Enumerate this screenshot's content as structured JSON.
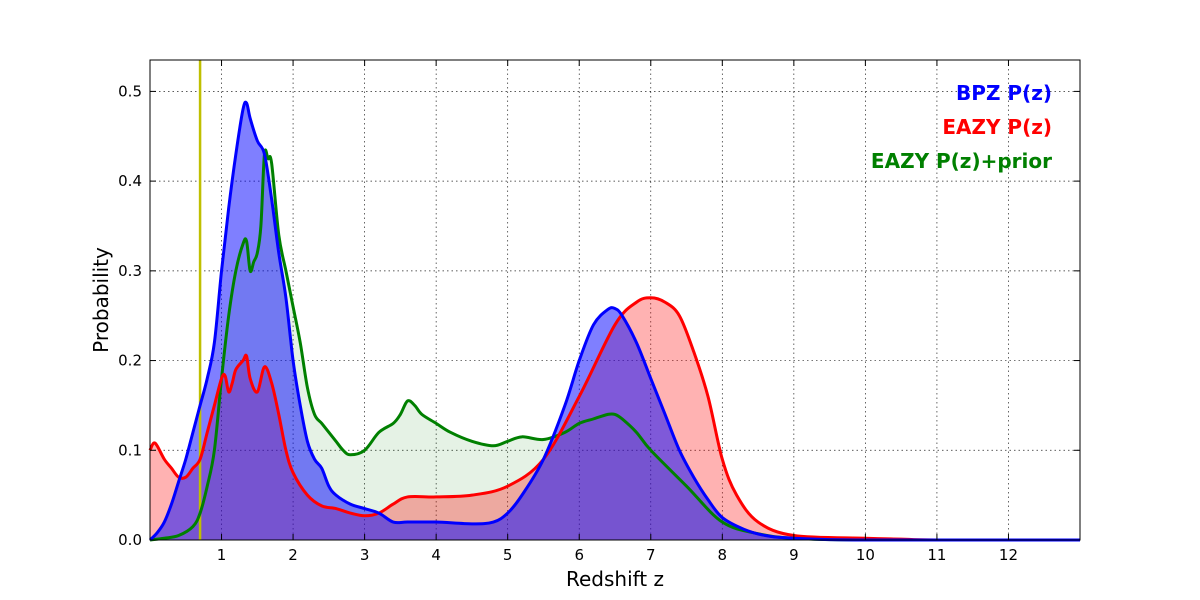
{
  "chart_data": {
    "type": "area",
    "title": "",
    "xlabel": "Redshift z",
    "ylabel": "Probability",
    "xlim": [
      0,
      13
    ],
    "ylim": [
      0,
      0.535
    ],
    "xticks": [
      1,
      2,
      3,
      4,
      5,
      6,
      7,
      8,
      9,
      10,
      11,
      12
    ],
    "xtick_labels": [
      "1",
      "2",
      "3",
      "4",
      "5",
      "6",
      "7",
      "8",
      "9",
      "10",
      "11",
      "12"
    ],
    "yticks": [
      0.0,
      0.1,
      0.2,
      0.3,
      0.4,
      0.5
    ],
    "ytick_labels": [
      "0.0",
      "0.1",
      "0.2",
      "0.3",
      "0.4",
      "0.5"
    ],
    "grid": true,
    "legend_placement": "top-right",
    "reference_line": {
      "x": 0.7,
      "color": "#bfbf00"
    },
    "series": [
      {
        "name": "BPZ P(z)",
        "color": "#0000ff",
        "fill": "#0000ff",
        "fill_opacity": 0.5,
        "x": [
          0,
          0.1,
          0.2,
          0.3,
          0.4,
          0.5,
          0.6,
          0.7,
          0.8,
          0.9,
          1.0,
          1.1,
          1.2,
          1.3,
          1.35,
          1.4,
          1.5,
          1.6,
          1.7,
          1.8,
          1.9,
          2.0,
          2.1,
          2.2,
          2.3,
          2.4,
          2.5,
          2.6,
          2.8,
          3.0,
          3.2,
          3.4,
          3.6,
          4.0,
          4.5,
          4.8,
          5.0,
          5.2,
          5.5,
          5.8,
          6.0,
          6.2,
          6.4,
          6.5,
          6.6,
          6.8,
          7.0,
          7.2,
          7.4,
          7.6,
          7.8,
          8.0,
          8.3,
          8.6,
          9.0,
          10.0,
          13.0
        ],
        "y": [
          0.0,
          0.008,
          0.02,
          0.04,
          0.065,
          0.09,
          0.12,
          0.15,
          0.18,
          0.22,
          0.3,
          0.37,
          0.43,
          0.48,
          0.487,
          0.47,
          0.445,
          0.43,
          0.38,
          0.32,
          0.27,
          0.2,
          0.15,
          0.11,
          0.09,
          0.08,
          0.06,
          0.05,
          0.04,
          0.035,
          0.03,
          0.02,
          0.02,
          0.02,
          0.018,
          0.02,
          0.03,
          0.05,
          0.09,
          0.15,
          0.2,
          0.24,
          0.257,
          0.258,
          0.25,
          0.22,
          0.18,
          0.14,
          0.1,
          0.07,
          0.045,
          0.025,
          0.012,
          0.005,
          0.002,
          0.0,
          0.0
        ]
      },
      {
        "name": "EAZY P(z)",
        "color": "#ff0000",
        "fill": "#ff0000",
        "fill_opacity": 0.3,
        "x": [
          0,
          0.05,
          0.1,
          0.2,
          0.3,
          0.4,
          0.5,
          0.6,
          0.7,
          0.8,
          0.9,
          1.0,
          1.05,
          1.1,
          1.15,
          1.2,
          1.3,
          1.35,
          1.4,
          1.5,
          1.6,
          1.7,
          1.8,
          1.9,
          2.0,
          2.2,
          2.4,
          2.6,
          2.8,
          3.0,
          3.2,
          3.4,
          3.6,
          4.0,
          4.5,
          5.0,
          5.5,
          6.0,
          6.5,
          6.8,
          7.0,
          7.2,
          7.4,
          7.6,
          7.8,
          8.0,
          8.2,
          8.5,
          9.0,
          10.0,
          10.5,
          11.0,
          13.0
        ],
        "y": [
          0.1,
          0.108,
          0.105,
          0.09,
          0.08,
          0.07,
          0.07,
          0.08,
          0.09,
          0.12,
          0.15,
          0.18,
          0.183,
          0.165,
          0.175,
          0.19,
          0.2,
          0.205,
          0.18,
          0.165,
          0.193,
          0.175,
          0.14,
          0.1,
          0.075,
          0.05,
          0.038,
          0.035,
          0.03,
          0.027,
          0.03,
          0.04,
          0.048,
          0.048,
          0.05,
          0.06,
          0.09,
          0.16,
          0.24,
          0.265,
          0.27,
          0.265,
          0.25,
          0.21,
          0.16,
          0.09,
          0.05,
          0.02,
          0.005,
          0.002,
          0.001,
          0.0,
          0.0
        ]
      },
      {
        "name": "EAZY P(z)+prior",
        "color": "#008000",
        "fill": "#008000",
        "fill_opacity": 0.1,
        "x": [
          0,
          0.2,
          0.4,
          0.6,
          0.7,
          0.8,
          0.9,
          1.0,
          1.1,
          1.2,
          1.3,
          1.35,
          1.4,
          1.45,
          1.5,
          1.55,
          1.6,
          1.65,
          1.7,
          1.8,
          1.9,
          2.0,
          2.1,
          2.2,
          2.3,
          2.4,
          2.5,
          2.6,
          2.7,
          2.8,
          3.0,
          3.2,
          3.4,
          3.5,
          3.6,
          3.7,
          3.8,
          4.0,
          4.2,
          4.5,
          4.8,
          5.0,
          5.2,
          5.5,
          5.8,
          6.0,
          6.2,
          6.4,
          6.5,
          6.6,
          6.8,
          7.0,
          7.5,
          8.0,
          8.5,
          9.0,
          10.0,
          13.0
        ],
        "y": [
          0.0,
          0.002,
          0.005,
          0.015,
          0.03,
          0.06,
          0.1,
          0.18,
          0.25,
          0.3,
          0.33,
          0.333,
          0.3,
          0.31,
          0.32,
          0.35,
          0.43,
          0.425,
          0.42,
          0.34,
          0.3,
          0.26,
          0.22,
          0.17,
          0.14,
          0.13,
          0.12,
          0.11,
          0.1,
          0.095,
          0.1,
          0.12,
          0.13,
          0.14,
          0.155,
          0.15,
          0.14,
          0.13,
          0.12,
          0.11,
          0.105,
          0.11,
          0.115,
          0.112,
          0.12,
          0.13,
          0.135,
          0.14,
          0.14,
          0.135,
          0.12,
          0.1,
          0.06,
          0.02,
          0.007,
          0.002,
          0.0,
          0.0
        ]
      }
    ]
  }
}
